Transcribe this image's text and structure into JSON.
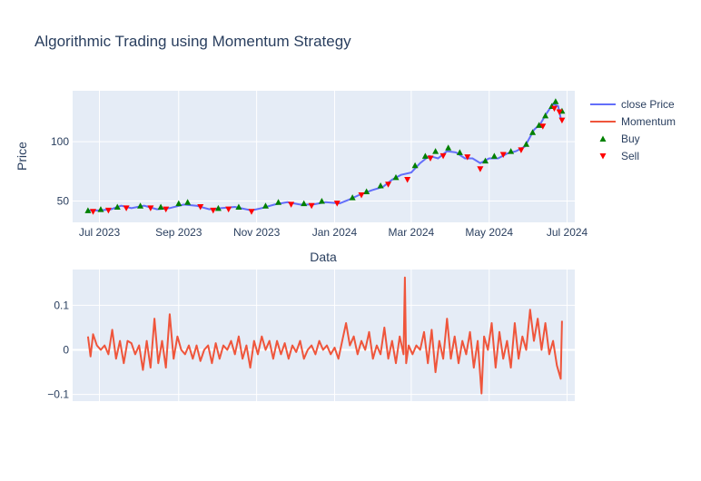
{
  "title": "Algorithmic Trading using Momentum Strategy",
  "legend": {
    "placement": "top-right",
    "items": [
      {
        "label": "close Price",
        "kind": "line",
        "color": "#636efa"
      },
      {
        "label": "Momentum",
        "kind": "line",
        "color": "#ef553b"
      },
      {
        "label": "Buy",
        "kind": "triangle-up",
        "color": "#008000"
      },
      {
        "label": "Sell",
        "kind": "triangle-down",
        "color": "#ff0000"
      }
    ]
  },
  "colors": {
    "plot_bg": "#e5ecf6",
    "grid": "#ffffff",
    "text": "#2a3f5f",
    "close": "#636efa",
    "momentum": "#ef553b",
    "buy": "#008000",
    "sell": "#ff0000"
  },
  "chart_data": [
    {
      "type": "line",
      "panel": "price",
      "xlabel": "Data",
      "ylabel": "Price",
      "grid": true,
      "xrange": [
        "2023-06-10",
        "2024-07-07"
      ],
      "ylim": [
        32,
        143
      ],
      "xticks": [
        "2023-07-01",
        "2023-09-01",
        "2023-11-01",
        "2024-01-01",
        "2024-03-01",
        "2024-05-01",
        "2024-07-01"
      ],
      "xtick_labels": [
        "Jul 2023",
        "Sep 2023",
        "Nov 2023",
        "Jan 2024",
        "Mar 2024",
        "May 2024",
        "Jul 2024"
      ],
      "yticks": [
        50,
        100
      ],
      "series_name": "close Price",
      "close": [
        [
          "2023-06-22",
          42
        ],
        [
          "2023-07-01",
          42
        ],
        [
          "2023-07-10",
          43
        ],
        [
          "2023-07-18",
          46
        ],
        [
          "2023-07-26",
          44
        ],
        [
          "2023-08-05",
          46
        ],
        [
          "2023-08-15",
          43
        ],
        [
          "2023-08-25",
          44
        ],
        [
          "2023-09-05",
          47
        ],
        [
          "2023-09-15",
          46
        ],
        [
          "2023-09-25",
          43
        ],
        [
          "2023-10-05",
          44
        ],
        [
          "2023-10-15",
          45
        ],
        [
          "2023-10-28",
          42
        ],
        [
          "2023-11-05",
          44
        ],
        [
          "2023-11-15",
          47
        ],
        [
          "2023-11-25",
          49
        ],
        [
          "2023-12-05",
          47
        ],
        [
          "2023-12-15",
          47
        ],
        [
          "2023-12-25",
          49
        ],
        [
          "2024-01-05",
          48
        ],
        [
          "2024-01-12",
          51
        ],
        [
          "2024-01-20",
          55
        ],
        [
          "2024-01-30",
          59
        ],
        [
          "2024-02-08",
          62
        ],
        [
          "2024-02-15",
          68
        ],
        [
          "2024-02-22",
          72
        ],
        [
          "2024-03-01",
          74
        ],
        [
          "2024-03-08",
          82
        ],
        [
          "2024-03-15",
          88
        ],
        [
          "2024-03-22",
          86
        ],
        [
          "2024-03-29",
          92
        ],
        [
          "2024-04-05",
          91
        ],
        [
          "2024-04-12",
          86
        ],
        [
          "2024-04-18",
          86
        ],
        [
          "2024-04-24",
          82
        ],
        [
          "2024-05-01",
          86
        ],
        [
          "2024-05-08",
          86
        ],
        [
          "2024-05-15",
          90
        ],
        [
          "2024-05-22",
          92
        ],
        [
          "2024-05-29",
          96
        ],
        [
          "2024-06-05",
          110
        ],
        [
          "2024-06-10",
          115
        ],
        [
          "2024-06-15",
          124
        ],
        [
          "2024-06-20",
          132
        ],
        [
          "2024-06-24",
          130
        ],
        [
          "2024-06-26",
          120
        ]
      ],
      "buy": [
        [
          "2023-06-22",
          42
        ],
        [
          "2023-07-02",
          43
        ],
        [
          "2023-07-15",
          45
        ],
        [
          "2023-08-02",
          46
        ],
        [
          "2023-08-18",
          45
        ],
        [
          "2023-09-01",
          48
        ],
        [
          "2023-09-08",
          49
        ],
        [
          "2023-10-02",
          44
        ],
        [
          "2023-10-18",
          45
        ],
        [
          "2023-11-08",
          46
        ],
        [
          "2023-11-18",
          49
        ],
        [
          "2023-12-08",
          48
        ],
        [
          "2023-12-22",
          50
        ],
        [
          "2024-01-15",
          53
        ],
        [
          "2024-01-26",
          58
        ],
        [
          "2024-02-06",
          63
        ],
        [
          "2024-02-18",
          70
        ],
        [
          "2024-03-04",
          80
        ],
        [
          "2024-03-12",
          88
        ],
        [
          "2024-03-20",
          92
        ],
        [
          "2024-03-30",
          95
        ],
        [
          "2024-04-08",
          91
        ],
        [
          "2024-04-28",
          84
        ],
        [
          "2024-05-05",
          88
        ],
        [
          "2024-05-18",
          92
        ],
        [
          "2024-05-30",
          98
        ],
        [
          "2024-06-04",
          108
        ],
        [
          "2024-06-09",
          114
        ],
        [
          "2024-06-14",
          122
        ],
        [
          "2024-06-19",
          130
        ],
        [
          "2024-06-22",
          134
        ],
        [
          "2024-06-27",
          126
        ]
      ],
      "sell": [
        [
          "2023-06-26",
          41
        ],
        [
          "2023-07-08",
          42
        ],
        [
          "2023-07-22",
          44
        ],
        [
          "2023-08-10",
          44
        ],
        [
          "2023-08-22",
          43
        ],
        [
          "2023-09-18",
          45
        ],
        [
          "2023-09-28",
          42
        ],
        [
          "2023-10-10",
          43
        ],
        [
          "2023-10-28",
          41
        ],
        [
          "2023-11-28",
          47
        ],
        [
          "2023-12-14",
          46
        ],
        [
          "2024-01-03",
          48
        ],
        [
          "2024-01-22",
          55
        ],
        [
          "2024-02-12",
          64
        ],
        [
          "2024-02-27",
          68
        ],
        [
          "2024-03-16",
          86
        ],
        [
          "2024-03-26",
          88
        ],
        [
          "2024-04-14",
          87
        ],
        [
          "2024-04-24",
          77
        ],
        [
          "2024-05-12",
          89
        ],
        [
          "2024-05-26",
          93
        ],
        [
          "2024-06-12",
          113
        ],
        [
          "2024-06-21",
          128
        ],
        [
          "2024-06-25",
          125
        ],
        [
          "2024-06-27",
          118
        ]
      ]
    },
    {
      "type": "line",
      "panel": "momentum",
      "series_name": "Momentum",
      "grid": true,
      "xrange": [
        "2023-06-10",
        "2024-07-07"
      ],
      "ylim": [
        -0.115,
        0.18
      ],
      "yticks": [
        -0.1,
        0,
        0.1
      ],
      "ytick_labels": [
        "−0.1",
        "0",
        "0.1"
      ],
      "momentum": [
        [
          "2023-06-22",
          0.03
        ],
        [
          "2023-06-24",
          -0.015
        ],
        [
          "2023-06-26",
          0.035
        ],
        [
          "2023-06-29",
          0.01
        ],
        [
          "2023-07-02",
          0.0
        ],
        [
          "2023-07-05",
          0.01
        ],
        [
          "2023-07-08",
          -0.01
        ],
        [
          "2023-07-11",
          0.045
        ],
        [
          "2023-07-14",
          -0.02
        ],
        [
          "2023-07-17",
          0.02
        ],
        [
          "2023-07-20",
          -0.03
        ],
        [
          "2023-07-23",
          0.02
        ],
        [
          "2023-07-26",
          0.015
        ],
        [
          "2023-07-29",
          -0.01
        ],
        [
          "2023-08-01",
          0.01
        ],
        [
          "2023-08-04",
          -0.045
        ],
        [
          "2023-08-07",
          0.02
        ],
        [
          "2023-08-10",
          -0.04
        ],
        [
          "2023-08-13",
          0.07
        ],
        [
          "2023-08-16",
          -0.03
        ],
        [
          "2023-08-19",
          0.02
        ],
        [
          "2023-08-22",
          -0.04
        ],
        [
          "2023-08-25",
          0.08
        ],
        [
          "2023-08-28",
          -0.02
        ],
        [
          "2023-08-31",
          0.03
        ],
        [
          "2023-09-03",
          0.0
        ],
        [
          "2023-09-06",
          -0.01
        ],
        [
          "2023-09-09",
          0.01
        ],
        [
          "2023-09-12",
          -0.02
        ],
        [
          "2023-09-15",
          0.01
        ],
        [
          "2023-09-18",
          -0.025
        ],
        [
          "2023-09-21",
          0.0
        ],
        [
          "2023-09-24",
          0.01
        ],
        [
          "2023-09-27",
          -0.03
        ],
        [
          "2023-09-30",
          0.015
        ],
        [
          "2023-10-03",
          -0.02
        ],
        [
          "2023-10-06",
          0.01
        ],
        [
          "2023-10-09",
          0.0
        ],
        [
          "2023-10-12",
          0.02
        ],
        [
          "2023-10-15",
          -0.01
        ],
        [
          "2023-10-18",
          0.03
        ],
        [
          "2023-10-21",
          -0.02
        ],
        [
          "2023-10-24",
          0.01
        ],
        [
          "2023-10-27",
          -0.04
        ],
        [
          "2023-10-30",
          0.02
        ],
        [
          "2023-11-02",
          -0.01
        ],
        [
          "2023-11-05",
          0.03
        ],
        [
          "2023-11-08",
          0.0
        ],
        [
          "2023-11-11",
          0.02
        ],
        [
          "2023-11-14",
          -0.02
        ],
        [
          "2023-11-17",
          0.02
        ],
        [
          "2023-11-20",
          -0.01
        ],
        [
          "2023-11-23",
          0.015
        ],
        [
          "2023-11-26",
          -0.02
        ],
        [
          "2023-11-29",
          0.01
        ],
        [
          "2023-12-02",
          -0.005
        ],
        [
          "2023-12-05",
          0.02
        ],
        [
          "2023-12-08",
          -0.02
        ],
        [
          "2023-12-11",
          0.0
        ],
        [
          "2023-12-14",
          0.01
        ],
        [
          "2023-12-17",
          -0.01
        ],
        [
          "2023-12-20",
          0.02
        ],
        [
          "2023-12-23",
          0.0
        ],
        [
          "2023-12-26",
          0.01
        ],
        [
          "2023-12-29",
          -0.01
        ],
        [
          "2024-01-01",
          0.005
        ],
        [
          "2024-01-04",
          -0.02
        ],
        [
          "2024-01-07",
          0.02
        ],
        [
          "2024-01-10",
          0.06
        ],
        [
          "2024-01-13",
          0.01
        ],
        [
          "2024-01-16",
          0.03
        ],
        [
          "2024-01-19",
          -0.01
        ],
        [
          "2024-01-22",
          0.02
        ],
        [
          "2024-01-25",
          0.0
        ],
        [
          "2024-01-28",
          0.04
        ],
        [
          "2024-01-31",
          -0.02
        ],
        [
          "2024-02-03",
          0.01
        ],
        [
          "2024-02-06",
          -0.01
        ],
        [
          "2024-02-09",
          0.05
        ],
        [
          "2024-02-12",
          -0.02
        ],
        [
          "2024-02-15",
          0.02
        ],
        [
          "2024-02-18",
          -0.03
        ],
        [
          "2024-02-21",
          0.03
        ],
        [
          "2024-02-24",
          -0.01
        ],
        [
          "2024-02-25",
          0.162
        ],
        [
          "2024-02-26",
          -0.03
        ],
        [
          "2024-02-28",
          0.01
        ],
        [
          "2024-03-02",
          -0.01
        ],
        [
          "2024-03-05",
          0.01
        ],
        [
          "2024-03-08",
          0.0
        ],
        [
          "2024-03-11",
          0.04
        ],
        [
          "2024-03-14",
          -0.03
        ],
        [
          "2024-03-17",
          0.045
        ],
        [
          "2024-03-20",
          -0.05
        ],
        [
          "2024-03-23",
          0.02
        ],
        [
          "2024-03-26",
          -0.02
        ],
        [
          "2024-03-29",
          0.07
        ],
        [
          "2024-04-01",
          -0.02
        ],
        [
          "2024-04-04",
          0.03
        ],
        [
          "2024-04-07",
          -0.03
        ],
        [
          "2024-04-10",
          0.02
        ],
        [
          "2024-04-13",
          -0.01
        ],
        [
          "2024-04-16",
          0.04
        ],
        [
          "2024-04-19",
          -0.04
        ],
        [
          "2024-04-22",
          0.02
        ],
        [
          "2024-04-25",
          -0.098
        ],
        [
          "2024-04-27",
          0.03
        ],
        [
          "2024-04-30",
          0.0
        ],
        [
          "2024-05-03",
          0.06
        ],
        [
          "2024-05-06",
          -0.04
        ],
        [
          "2024-05-09",
          0.04
        ],
        [
          "2024-05-12",
          -0.02
        ],
        [
          "2024-05-15",
          0.02
        ],
        [
          "2024-05-18",
          -0.04
        ],
        [
          "2024-05-21",
          0.06
        ],
        [
          "2024-05-24",
          -0.02
        ],
        [
          "2024-05-27",
          0.03
        ],
        [
          "2024-05-30",
          0.0
        ],
        [
          "2024-06-02",
          0.09
        ],
        [
          "2024-06-05",
          0.02
        ],
        [
          "2024-06-08",
          0.07
        ],
        [
          "2024-06-11",
          0.0
        ],
        [
          "2024-06-14",
          0.06
        ],
        [
          "2024-06-17",
          -0.01
        ],
        [
          "2024-06-20",
          0.02
        ],
        [
          "2024-06-23",
          -0.035
        ],
        [
          "2024-06-26",
          -0.065
        ],
        [
          "2024-06-27",
          0.065
        ]
      ]
    }
  ],
  "footer": {
    "shared_xlabel": "Data"
  }
}
